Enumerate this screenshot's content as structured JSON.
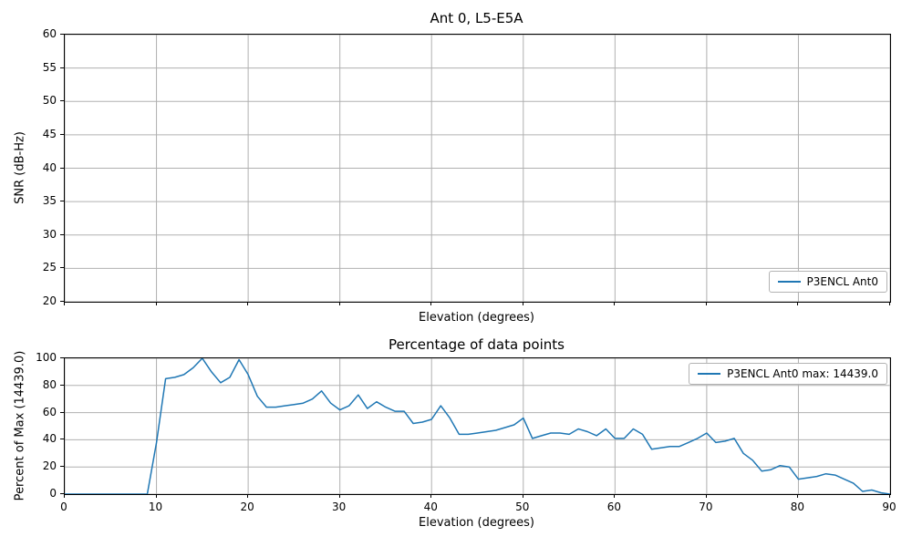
{
  "colors": {
    "line": "#1f77b4",
    "grid": "#b0b0b0",
    "spine": "#000000"
  },
  "chart_data": [
    {
      "type": "line",
      "title": "Ant 0, L5-E5A",
      "xlabel": "Elevation (degrees)",
      "ylabel": "SNR (dB-Hz)",
      "xlim": [
        0,
        90
      ],
      "ylim": [
        20,
        60
      ],
      "xticks": [
        0,
        10,
        20,
        30,
        40,
        50,
        60,
        70,
        80,
        90
      ],
      "yticks": [
        20,
        25,
        30,
        35,
        40,
        45,
        50,
        55,
        60
      ],
      "show_xtick_labels": false,
      "grid": true,
      "legend": {
        "label": "P3ENCL Ant0",
        "position": "lower right"
      },
      "series": []
    },
    {
      "type": "line",
      "title": "Percentage of data points",
      "xlabel": "Elevation (degrees)",
      "ylabel": "Percent of Max (14439.0)",
      "xlim": [
        0,
        90
      ],
      "ylim": [
        0,
        100
      ],
      "xticks": [
        0,
        10,
        20,
        30,
        40,
        50,
        60,
        70,
        80,
        90
      ],
      "yticks": [
        0,
        20,
        40,
        60,
        80,
        100
      ],
      "show_xtick_labels": true,
      "grid": true,
      "legend": {
        "label": "P3ENCL Ant0 max: 14439.0",
        "position": "upper right"
      },
      "max_value": 14439.0,
      "series": [
        {
          "name": "P3ENCL Ant0",
          "x": [
            0,
            1,
            2,
            3,
            4,
            5,
            6,
            7,
            8,
            9,
            10,
            11,
            12,
            13,
            14,
            15,
            16,
            17,
            18,
            19,
            20,
            21,
            22,
            23,
            24,
            25,
            26,
            27,
            28,
            29,
            30,
            31,
            32,
            33,
            34,
            35,
            36,
            37,
            38,
            39,
            40,
            41,
            42,
            43,
            44,
            45,
            46,
            47,
            48,
            49,
            50,
            51,
            52,
            53,
            54,
            55,
            56,
            57,
            58,
            59,
            60,
            61,
            62,
            63,
            64,
            65,
            66,
            67,
            68,
            69,
            70,
            71,
            72,
            73,
            74,
            75,
            76,
            77,
            78,
            79,
            80,
            81,
            82,
            83,
            84,
            85,
            86,
            87,
            88,
            89,
            90
          ],
          "y": [
            0,
            0,
            0,
            0,
            0,
            0,
            0,
            0,
            0,
            0,
            38,
            85,
            86,
            88,
            93,
            100,
            90,
            82,
            86,
            99,
            88,
            72,
            64,
            64,
            65,
            66,
            67,
            70,
            76,
            67,
            62,
            65,
            73,
            63,
            68,
            64,
            61,
            61,
            52,
            53,
            55,
            65,
            56,
            44,
            44,
            45,
            46,
            47,
            49,
            51,
            56,
            41,
            43,
            45,
            45,
            44,
            48,
            46,
            43,
            48,
            41,
            41,
            48,
            44,
            33,
            34,
            35,
            35,
            38,
            41,
            45,
            38,
            39,
            41,
            30,
            25,
            17,
            18,
            21,
            20,
            11,
            12,
            13,
            15,
            14,
            11,
            8,
            2,
            3,
            1,
            0
          ]
        }
      ]
    }
  ]
}
